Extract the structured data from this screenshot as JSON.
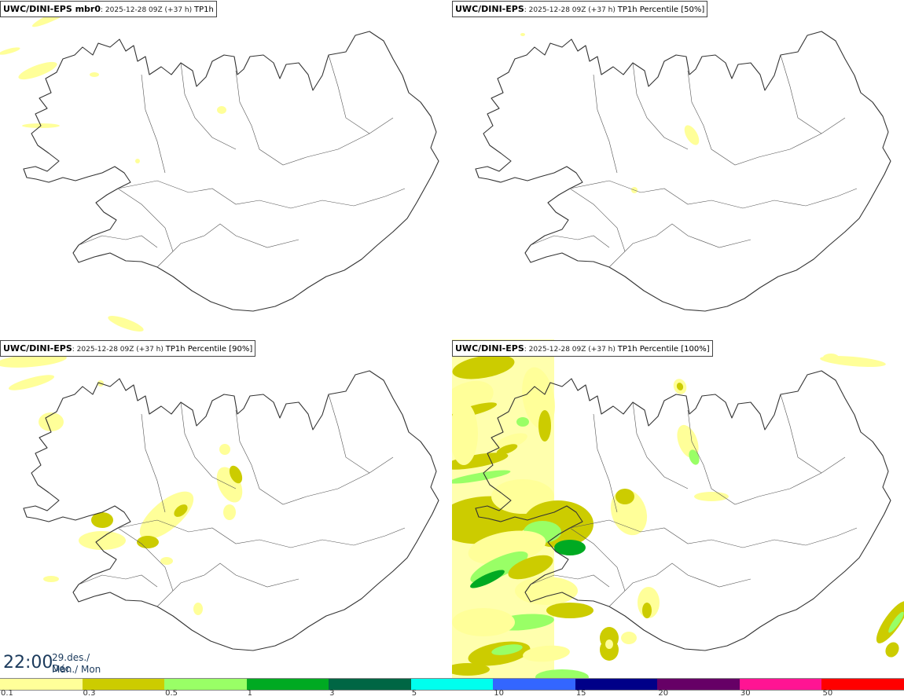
{
  "panels": [
    {
      "model": "UWC/DINI-EPS mbr0",
      "run": ": 2025-12-28 09Z (+37 h) ",
      "param": "TP1h",
      "intensity": 0
    },
    {
      "model": "UWC/DINI-EPS",
      "run": ": 2025-12-28 09Z (+37 h) ",
      "param": "TP1h Percentile [50%]",
      "intensity": 1
    },
    {
      "model": "UWC/DINI-EPS",
      "run": ": 2025-12-28 09Z (+37 h) ",
      "param": "TP1h Percentile [90%]",
      "intensity": 2
    },
    {
      "model": "UWC/DINI-EPS",
      "run": ": 2025-12-28 09Z (+37 h) ",
      "param": "TP1h Percentile [100%]",
      "intensity": 3
    }
  ],
  "valid_time": {
    "time": "22:00",
    "date": "29.des./ Dec",
    "day": "Mán./ Mon"
  },
  "legend": {
    "colors": [
      "#ffff99",
      "#cccc00",
      "#99ff66",
      "#00aa22",
      "#006644",
      "#00ffee",
      "#3366ff",
      "#000088",
      "#660066",
      "#ff1493",
      "#ff0000"
    ],
    "labels": [
      "0.1",
      "0.3",
      "0.5",
      "1",
      "3",
      "5",
      "10",
      "15",
      "20",
      "30",
      "50"
    ]
  }
}
